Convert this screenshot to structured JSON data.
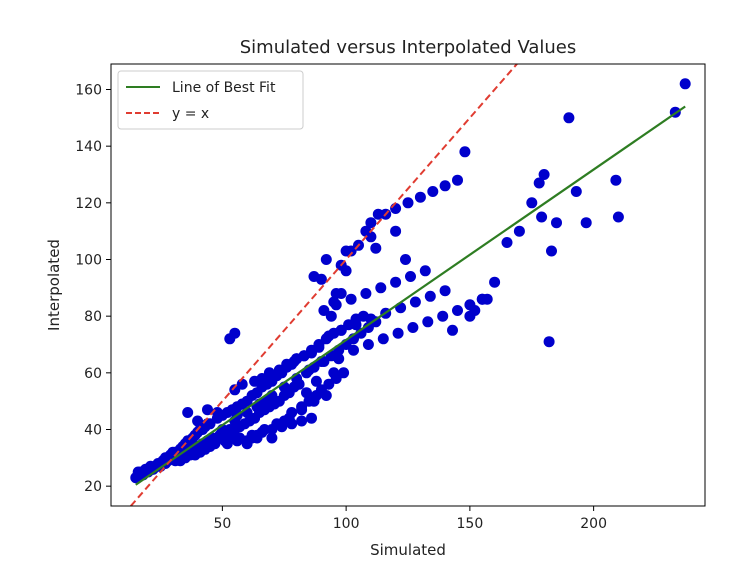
{
  "chart_data": {
    "type": "scatter",
    "title": "Simulated versus Interpolated Values",
    "xlabel": "Simulated",
    "ylabel": "Interpolated",
    "xlim": [
      5,
      245
    ],
    "ylim": [
      13,
      169
    ],
    "xticks": [
      50,
      100,
      150,
      200
    ],
    "yticks": [
      20,
      40,
      60,
      80,
      100,
      120,
      140,
      160
    ],
    "grid": false,
    "legend_position": "top-left",
    "colors": {
      "points": "#0000cc",
      "fit": "#2e7d22",
      "identity": "#e03c31",
      "axes": "#000000"
    },
    "fit_line": {
      "label": "Line of Best Fit",
      "x": [
        15,
        237
      ],
      "y": [
        20.5,
        154
      ]
    },
    "identity_line": {
      "label": "y = x",
      "x": [
        13,
        170
      ],
      "y": [
        13,
        170
      ]
    },
    "series": [
      {
        "name": "",
        "x": [
          15,
          16,
          17,
          18,
          19,
          20,
          21,
          22,
          23,
          24,
          25,
          26,
          27,
          28,
          29,
          30,
          31,
          32,
          33,
          34,
          35,
          36,
          37,
          38,
          39,
          40,
          41,
          42,
          43,
          44,
          45,
          16,
          18,
          20,
          22,
          24,
          26,
          28,
          30,
          32,
          34,
          36,
          38,
          40,
          42,
          44,
          46,
          17,
          19,
          21,
          23,
          25,
          27,
          29,
          31,
          33,
          35,
          37,
          39,
          41,
          43,
          45,
          47,
          48,
          50,
          52,
          54,
          56,
          58,
          60,
          62,
          64,
          66,
          68,
          70,
          72,
          74,
          76,
          78,
          80,
          49,
          51,
          53,
          55,
          57,
          59,
          61,
          63,
          65,
          67,
          69,
          71,
          73,
          75,
          77,
          79,
          81,
          50,
          55,
          60,
          65,
          70,
          75,
          80,
          85,
          90,
          52,
          57,
          62,
          67,
          72,
          77,
          82,
          87,
          92,
          56,
          64,
          68,
          84,
          88,
          95,
          55,
          58,
          63,
          66,
          69,
          73,
          76,
          79,
          83,
          86,
          89,
          75,
          78,
          82,
          85,
          88,
          90,
          93,
          96,
          99,
          80,
          83,
          86,
          89,
          92,
          95,
          98,
          101,
          104,
          107,
          84,
          87,
          91,
          94,
          97,
          100,
          103,
          106,
          109,
          112,
          91,
          96,
          102,
          108,
          114,
          120,
          126,
          132,
          93,
          98,
          104,
          110,
          116,
          122,
          128,
          134,
          140,
          97,
          103,
          109,
          115,
          121,
          127,
          133,
          139,
          145,
          150,
          155,
          92,
          100,
          105,
          95,
          98,
          110,
          110,
          113,
          120,
          125,
          130,
          135,
          140,
          145,
          148,
          143,
          150,
          152,
          155,
          157,
          160,
          165,
          170,
          175,
          178,
          180,
          183,
          185,
          190,
          193,
          197,
          209,
          210,
          233,
          237,
          179,
          182,
          53,
          55,
          87,
          90,
          94,
          96,
          98,
          100,
          102,
          108,
          112,
          116,
          120,
          124,
          60,
          62,
          64,
          66,
          70,
          74,
          78,
          82,
          86,
          36,
          40,
          44,
          48,
          52,
          56,
          60,
          64,
          70,
          30,
          33,
          36,
          39,
          42,
          45,
          48,
          51,
          54
        ],
        "y": [
          23,
          24,
          25,
          24,
          26,
          25,
          27,
          26,
          27,
          28,
          28,
          29,
          30,
          29,
          31,
          31,
          32,
          32,
          33,
          34,
          35,
          36,
          36,
          37,
          38,
          39,
          40,
          40,
          41,
          42,
          42,
          25,
          25,
          26,
          26,
          27,
          28,
          29,
          30,
          30,
          31,
          32,
          33,
          34,
          35,
          36,
          37,
          24,
          25,
          26,
          27,
          27,
          28,
          30,
          29,
          29,
          30,
          31,
          31,
          32,
          33,
          34,
          35,
          44,
          45,
          46,
          47,
          48,
          49,
          50,
          52,
          53,
          55,
          56,
          57,
          59,
          60,
          62,
          63,
          65,
          38,
          39,
          40,
          40,
          41,
          42,
          43,
          44,
          46,
          47,
          48,
          49,
          50,
          52,
          53,
          55,
          56,
          40,
          43,
          46,
          49,
          52,
          55,
          58,
          61,
          64,
          35,
          37,
          38,
          40,
          42,
          44,
          47,
          50,
          52,
          45,
          48,
          50,
          53,
          57,
          60,
          54,
          56,
          57,
          58,
          60,
          61,
          63,
          64,
          66,
          67,
          69,
          43,
          46,
          48,
          50,
          52,
          54,
          56,
          58,
          60,
          65,
          66,
          68,
          70,
          72,
          74,
          75,
          77,
          79,
          80,
          60,
          62,
          64,
          66,
          68,
          70,
          72,
          74,
          76,
          78,
          82,
          84,
          86,
          88,
          90,
          92,
          94,
          96,
          73,
          75,
          77,
          79,
          81,
          83,
          85,
          87,
          89,
          65,
          68,
          70,
          72,
          74,
          76,
          78,
          80,
          82,
          84,
          86,
          100,
          103,
          105,
          85,
          88,
          108,
          113,
          116,
          118,
          120,
          122,
          124,
          126,
          128,
          138,
          75,
          80,
          82,
          86,
          86,
          92,
          106,
          110,
          120,
          127,
          130,
          103,
          113,
          150,
          124,
          113,
          128,
          115,
          152,
          162,
          115,
          71,
          72,
          74,
          94,
          93,
          80,
          88,
          98,
          96,
          103,
          110,
          104,
          116,
          110,
          100,
          36,
          37,
          38,
          39,
          40,
          41,
          42,
          43,
          44,
          46,
          43,
          47,
          46,
          38,
          36,
          35,
          37,
          37,
          32,
          33,
          31,
          34,
          33,
          35,
          37,
          36,
          38
        ]
      }
    ]
  }
}
